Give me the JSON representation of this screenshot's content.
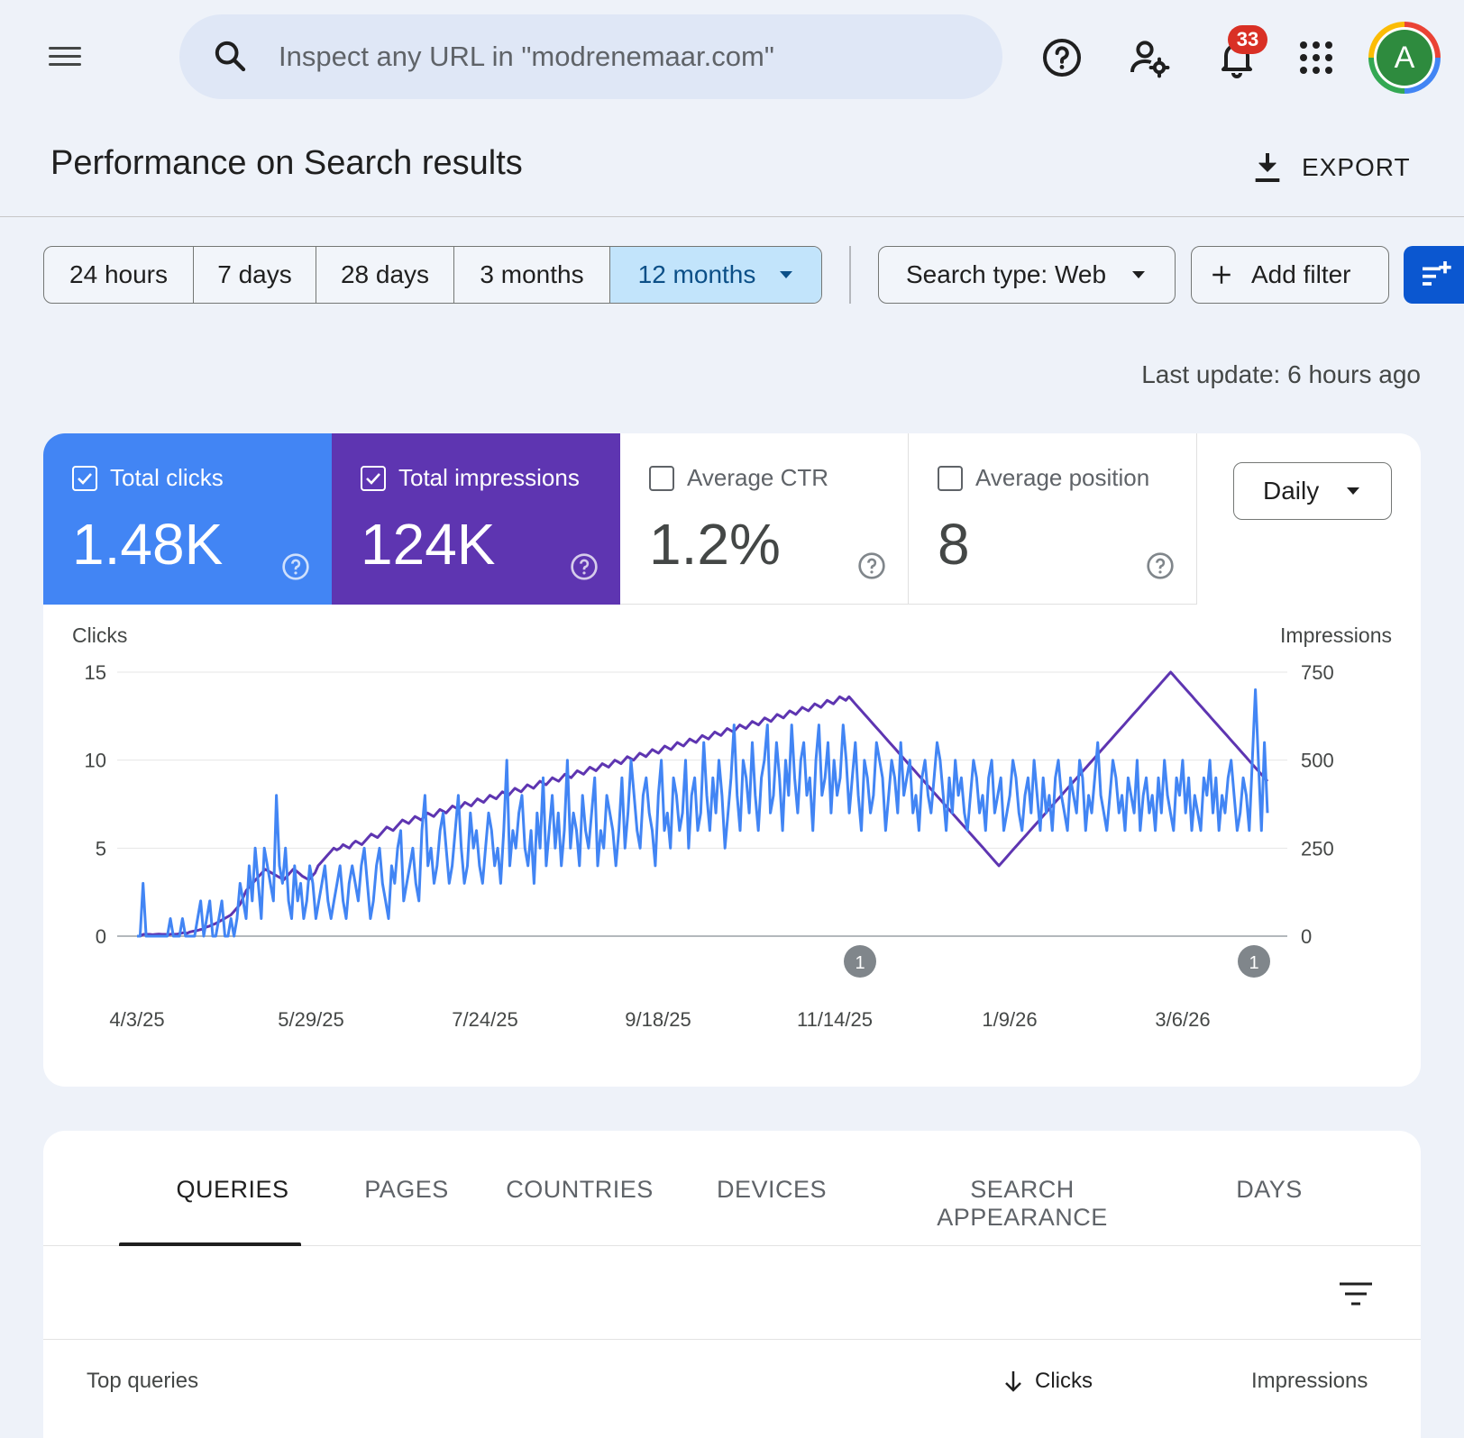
{
  "search": {
    "placeholder": "Inspect any URL in \"modrenemaar.com\""
  },
  "header": {
    "notifications_count": "33",
    "avatar_letter": "A"
  },
  "page": {
    "title": "Performance on Search results",
    "export_label": "EXPORT",
    "last_update": "Last update: 6 hours ago"
  },
  "date_range": {
    "options": [
      "24 hours",
      "7 days",
      "28 days",
      "3 months",
      "12 months"
    ],
    "selected": "12 months"
  },
  "filters": {
    "search_type": "Search type: Web",
    "add_filter": "Add filter"
  },
  "metrics": [
    {
      "label": "Total clicks",
      "value": "1.48K",
      "checked": true,
      "color": "#4285f4"
    },
    {
      "label": "Total impressions",
      "value": "124K",
      "checked": true,
      "color": "#5e35b1"
    },
    {
      "label": "Average CTR",
      "value": "1.2%",
      "checked": false
    },
    {
      "label": "Average position",
      "value": "8",
      "checked": false
    }
  ],
  "granularity": "Daily",
  "chart_data": {
    "type": "line",
    "left_axis": {
      "label": "Clicks",
      "ticks": [
        "15",
        "10",
        "5",
        "0"
      ],
      "ylim": [
        0,
        15
      ]
    },
    "right_axis": {
      "label": "Impressions",
      "ticks": [
        "750",
        "500",
        "250",
        "0"
      ],
      "ylim": [
        0,
        750
      ]
    },
    "x_ticks": [
      "4/3/25",
      "5/29/25",
      "7/24/25",
      "9/18/25",
      "11/14/25",
      "1/9/26",
      "3/6/26"
    ],
    "x_range": [
      "4/3/25",
      "3/28/26"
    ],
    "annotations": [
      {
        "date": "11/14/25",
        "label": "1"
      },
      {
        "date": "3/28/26",
        "label": "1"
      }
    ],
    "series": [
      {
        "name": "Clicks",
        "color": "#4285f4",
        "axis": "left",
        "values": [
          0,
          0,
          3,
          0,
          0,
          0,
          0,
          0,
          0,
          0,
          0,
          1,
          0,
          0,
          0,
          1,
          0,
          0,
          0,
          0,
          1,
          2,
          0,
          1,
          2,
          0,
          0,
          1,
          2,
          0,
          0,
          1,
          0,
          1,
          3,
          2,
          1,
          4,
          2,
          5,
          3,
          1,
          5,
          4,
          3,
          2,
          8,
          4,
          3,
          5,
          2,
          1,
          4,
          2,
          3,
          1,
          2,
          4,
          3,
          1,
          2,
          3,
          4,
          2,
          1,
          2,
          3,
          4,
          2,
          1,
          3,
          4,
          3,
          2,
          4,
          5,
          3,
          1,
          2,
          4,
          5,
          3,
          2,
          1,
          4,
          3,
          5,
          6,
          2,
          3,
          4,
          5,
          3,
          2,
          6,
          8,
          4,
          5,
          3,
          4,
          6,
          7,
          5,
          3,
          4,
          6,
          8,
          5,
          3,
          4,
          7,
          5,
          6,
          4,
          3,
          5,
          7,
          6,
          4,
          5,
          3,
          6,
          10,
          4,
          6,
          5,
          7,
          8,
          5,
          4,
          6,
          3,
          7,
          5,
          9,
          4,
          6,
          8,
          5,
          7,
          4,
          6,
          10,
          5,
          7,
          6,
          4,
          8,
          6,
          5,
          7,
          9,
          4,
          6,
          5,
          8,
          7,
          6,
          4,
          6,
          9,
          5,
          7,
          10,
          8,
          6,
          5,
          8,
          9,
          7,
          6,
          4,
          8,
          10,
          6,
          7,
          5,
          9,
          8,
          6,
          7,
          10,
          5,
          8,
          9,
          6,
          7,
          11,
          8,
          6,
          9,
          7,
          10,
          8,
          5,
          7,
          9,
          12,
          8,
          6,
          10,
          9,
          7,
          11,
          8,
          6,
          9,
          10,
          12,
          7,
          8,
          11,
          9,
          6,
          10,
          8,
          12,
          9,
          7,
          10,
          11,
          8,
          9,
          6,
          10,
          12,
          8,
          9,
          11,
          7,
          10,
          8,
          9,
          12,
          10,
          7,
          9,
          11,
          8,
          6,
          10,
          9,
          7,
          8,
          11,
          10,
          9,
          6,
          8,
          10,
          9,
          7,
          11,
          8,
          9,
          10,
          7,
          8,
          6,
          9,
          10,
          8,
          7,
          9,
          11,
          10,
          8,
          6,
          9,
          7,
          10,
          8,
          9,
          7,
          6,
          8,
          10,
          9,
          7,
          8,
          6,
          9,
          10,
          7,
          8,
          9,
          6,
          7,
          8,
          10,
          9,
          7,
          6,
          8,
          9,
          7,
          10,
          8,
          6,
          9,
          7,
          8,
          6,
          9,
          10,
          8,
          7,
          6,
          9,
          8,
          7,
          10,
          9,
          6,
          8,
          7,
          9,
          11,
          8,
          7,
          6,
          8,
          10,
          9,
          7,
          8,
          6,
          9,
          8,
          7,
          10,
          6,
          8,
          9,
          7,
          8,
          6,
          9,
          7,
          10,
          8,
          7,
          6,
          9,
          8,
          10,
          7,
          9,
          6,
          8,
          7,
          6,
          9,
          8,
          10,
          7,
          9,
          6,
          8,
          7,
          9,
          10,
          8,
          6,
          7,
          9,
          8,
          6,
          10,
          14,
          10,
          6,
          11,
          7
        ]
      },
      {
        "name": "Impressions",
        "color": "#5e35b1",
        "axis": "right",
        "values": [
          0,
          0,
          5,
          5,
          5,
          4,
          5,
          6,
          5,
          5,
          4,
          6,
          5,
          6,
          8,
          10,
          8,
          12,
          14,
          15,
          18,
          20,
          25,
          28,
          32,
          35,
          40,
          45,
          50,
          55,
          60,
          70,
          80,
          90,
          110,
          130,
          140,
          150,
          160,
          170,
          180,
          190,
          185,
          180,
          175,
          170,
          165,
          160,
          170,
          180,
          190,
          185,
          178,
          170,
          165,
          160,
          170,
          180,
          200,
          210,
          220,
          230,
          240,
          250,
          245,
          250,
          260,
          255,
          250,
          262,
          270,
          265,
          260,
          270,
          280,
          290,
          285,
          280,
          290,
          300,
          310,
          305,
          300,
          310,
          320,
          330,
          325,
          320,
          330,
          340,
          335,
          330,
          340,
          350,
          345,
          340,
          350,
          360,
          355,
          350,
          360,
          370,
          365,
          360,
          370,
          380,
          375,
          370,
          380,
          390,
          385,
          380,
          390,
          400,
          395,
          390,
          400,
          410,
          405,
          400,
          410,
          420,
          415,
          410,
          420,
          430,
          425,
          420,
          430,
          440,
          435,
          430,
          440,
          450,
          445,
          440,
          450,
          460,
          455,
          450,
          460,
          470,
          465,
          460,
          470,
          480,
          475,
          470,
          480,
          490,
          485,
          480,
          490,
          500,
          495,
          490,
          500,
          510,
          505,
          500,
          510,
          520,
          515,
          510,
          520,
          530,
          525,
          520,
          530,
          540,
          535,
          530,
          540,
          550,
          545,
          540,
          550,
          560,
          555,
          550,
          560,
          570,
          565,
          560,
          570,
          580,
          575,
          570,
          580,
          590,
          585,
          580,
          590,
          600,
          595,
          590,
          600,
          610,
          605,
          600,
          610,
          620,
          615,
          610,
          620,
          630,
          625,
          620,
          630,
          640,
          635,
          630,
          640,
          650,
          645,
          640,
          650,
          660,
          655,
          650,
          660,
          670,
          665,
          660,
          670,
          680,
          675,
          670,
          680,
          670,
          660,
          650,
          640,
          630,
          620,
          610,
          600,
          590,
          580,
          570,
          560,
          550,
          540,
          530,
          520,
          510,
          500,
          490,
          480,
          470,
          460,
          450,
          440,
          430,
          420,
          410,
          400,
          390,
          380,
          370,
          360,
          350,
          340,
          330,
          320,
          310,
          300,
          290,
          280,
          270,
          260,
          250,
          240,
          230,
          220,
          210,
          200,
          210,
          220,
          230,
          240,
          250,
          260,
          270,
          280,
          290,
          300,
          310,
          320,
          330,
          340,
          350,
          360,
          370,
          380,
          390,
          400,
          410,
          420,
          430,
          440,
          450,
          460,
          470,
          480,
          490,
          500,
          510,
          520,
          530,
          540,
          550,
          560,
          570,
          580,
          590,
          600,
          610,
          620,
          630,
          640,
          650,
          660,
          670,
          680,
          690,
          700,
          710,
          720,
          730,
          740,
          750,
          740,
          730,
          720,
          710,
          700,
          690,
          680,
          670,
          660,
          650,
          640,
          630,
          620,
          610,
          600,
          590,
          580,
          570,
          560,
          550,
          540,
          530,
          520,
          510,
          500,
          490,
          480,
          470,
          460,
          450,
          440
        ]
      }
    ]
  },
  "tabs": [
    "QUERIES",
    "PAGES",
    "COUNTRIES",
    "DEVICES",
    "SEARCH APPEARANCE",
    "DAYS"
  ],
  "active_tab": "QUERIES",
  "table": {
    "headers": {
      "query": "Top queries",
      "clicks": "Clicks",
      "impressions": "Impressions"
    },
    "sort": "Clicks descending"
  }
}
